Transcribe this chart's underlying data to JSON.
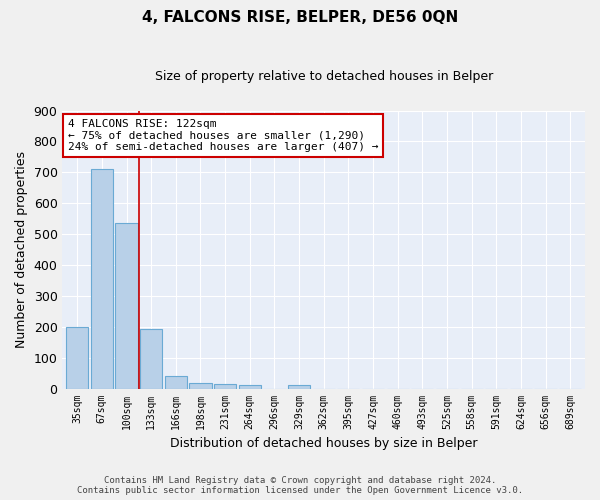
{
  "title": "4, FALCONS RISE, BELPER, DE56 0QN",
  "subtitle": "Size of property relative to detached houses in Belper",
  "xlabel": "Distribution of detached houses by size in Belper",
  "ylabel": "Number of detached properties",
  "categories": [
    "35sqm",
    "67sqm",
    "100sqm",
    "133sqm",
    "166sqm",
    "198sqm",
    "231sqm",
    "264sqm",
    "296sqm",
    "329sqm",
    "362sqm",
    "395sqm",
    "427sqm",
    "460sqm",
    "493sqm",
    "525sqm",
    "558sqm",
    "591sqm",
    "624sqm",
    "656sqm",
    "689sqm"
  ],
  "values": [
    200,
    710,
    535,
    193,
    42,
    18,
    15,
    12,
    0,
    10,
    0,
    0,
    0,
    0,
    0,
    0,
    0,
    0,
    0,
    0,
    0
  ],
  "bar_color": "#b8d0e8",
  "bar_edge_color": "#6aaad4",
  "background_color": "#e8eef8",
  "fig_background_color": "#f0f0f0",
  "grid_color": "#ffffff",
  "ylim": [
    0,
    900
  ],
  "yticks": [
    0,
    100,
    200,
    300,
    400,
    500,
    600,
    700,
    800,
    900
  ],
  "property_line_x": 2.5,
  "property_line_color": "#cc0000",
  "annotation_line1": "4 FALCONS RISE: 122sqm",
  "annotation_line2": "← 75% of detached houses are smaller (1,290)",
  "annotation_line3": "24% of semi-detached houses are larger (407) →",
  "annotation_box_color": "#ffffff",
  "annotation_box_edge_color": "#cc0000",
  "footer_line1": "Contains HM Land Registry data © Crown copyright and database right 2024.",
  "footer_line2": "Contains public sector information licensed under the Open Government Licence v3.0.",
  "title_fontsize": 11,
  "subtitle_fontsize": 9,
  "ylabel_fontsize": 9,
  "xlabel_fontsize": 9,
  "ytick_fontsize": 9,
  "xtick_fontsize": 7,
  "footer_fontsize": 6.5,
  "annotation_fontsize": 8
}
